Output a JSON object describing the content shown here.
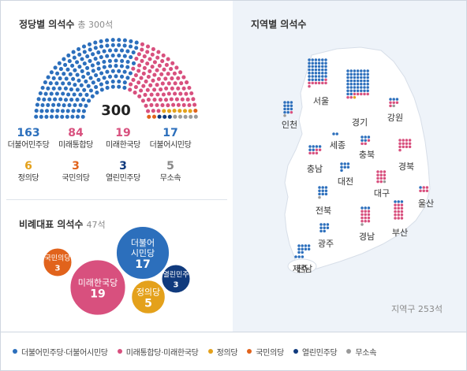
{
  "colors": {
    "democratic": "#2c6fbc",
    "united": "#d8507e",
    "justice": "#e4a11b",
    "peoples": "#e1631c",
    "open": "#103a7d",
    "independent": "#9a9a9a",
    "map_land": "#ffffff",
    "map_bg": "#eef3f9"
  },
  "seats_panel": {
    "title": "정당별 의석수",
    "subtitle": "총 300석",
    "total": "300"
  },
  "proportional_panel": {
    "title": "비례대표 의석수",
    "subtitle": "47석"
  },
  "regional_panel": {
    "title": "지역별 의석수",
    "note": "지역구 253석"
  },
  "chart_data": [
    {
      "type": "parliament",
      "title": "정당별 의석수",
      "subtitle": "총 300석",
      "total": 300,
      "series": [
        {
          "key": "democratic",
          "name": "더불어민주당",
          "value": 163
        },
        {
          "key": "united",
          "name": "미래통합당",
          "value": 84
        },
        {
          "key": "united2",
          "name": "미래한국당",
          "value": 19
        },
        {
          "key": "democratic2",
          "name": "더불어시민당",
          "value": 17
        },
        {
          "key": "justice",
          "name": "정의당",
          "value": 6
        },
        {
          "key": "peoples",
          "name": "국민의당",
          "value": 3
        },
        {
          "key": "open",
          "name": "열린민주당",
          "value": 3
        },
        {
          "key": "independent",
          "name": "무소속",
          "value": 5
        }
      ]
    },
    {
      "type": "bubble",
      "title": "비례대표 의석수",
      "subtitle": "47석",
      "series": [
        {
          "key": "peoples",
          "name": "국민의당",
          "value": 3
        },
        {
          "key": "united",
          "name": "미래한국당",
          "value": 19
        },
        {
          "key": "democratic",
          "name": "더불어 시민당",
          "value": 17
        },
        {
          "key": "justice",
          "name": "정의당",
          "value": 5
        },
        {
          "key": "open",
          "name": "열린민주",
          "value": 3
        }
      ]
    },
    {
      "type": "map",
      "title": "지역별 의석수",
      "note": "지역구 253석",
      "regions": [
        {
          "name": "서울",
          "seats": {
            "democratic": 41,
            "united": 8
          }
        },
        {
          "name": "경기",
          "seats": {
            "democratic": 51,
            "united": 7,
            "justice": 1
          }
        },
        {
          "name": "인천",
          "seats": {
            "democratic": 11,
            "united": 1,
            "independent": 1
          }
        },
        {
          "name": "강원",
          "seats": {
            "democratic": 3,
            "united": 4,
            "independent": 1
          }
        },
        {
          "name": "세종",
          "seats": {
            "democratic": 2
          }
        },
        {
          "name": "충북",
          "seats": {
            "democratic": 5,
            "united": 3
          }
        },
        {
          "name": "충남",
          "seats": {
            "democratic": 6,
            "united": 5
          }
        },
        {
          "name": "대전",
          "seats": {
            "democratic": 7
          }
        },
        {
          "name": "경북",
          "seats": {
            "united": 13
          }
        },
        {
          "name": "대구",
          "seats": {
            "united": 11,
            "independent": 1
          }
        },
        {
          "name": "전북",
          "seats": {
            "democratic": 9,
            "independent": 1
          }
        },
        {
          "name": "울산",
          "seats": {
            "democratic": 1,
            "united": 5
          }
        },
        {
          "name": "광주",
          "seats": {
            "democratic": 8
          }
        },
        {
          "name": "경남",
          "seats": {
            "democratic": 3,
            "united": 12,
            "independent": 1
          }
        },
        {
          "name": "부산",
          "seats": {
            "democratic": 3,
            "united": 15
          }
        },
        {
          "name": "전남",
          "seats": {
            "democratic": 10
          }
        },
        {
          "name": "제주",
          "seats": {
            "democratic": 3
          }
        }
      ]
    }
  ],
  "legend": [
    {
      "key": "democratic",
      "label": "더불어민주당·더불어시민당"
    },
    {
      "key": "united",
      "label": "미래통합당·미래한국당"
    },
    {
      "key": "justice",
      "label": "정의당"
    },
    {
      "key": "peoples",
      "label": "국민의당"
    },
    {
      "key": "open",
      "label": "열린민주당"
    },
    {
      "key": "independent",
      "label": "무소속"
    }
  ]
}
